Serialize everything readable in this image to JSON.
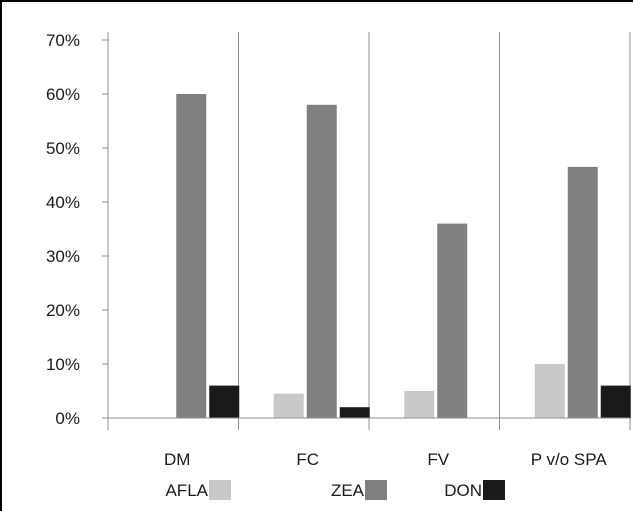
{
  "chart_data": {
    "type": "bar",
    "categories": [
      "DM",
      "FC",
      "FV",
      "P v/o SPA"
    ],
    "series": [
      {
        "name": "AFLA",
        "color": "#c8c8c8",
        "values": [
          0,
          4.5,
          5,
          10
        ]
      },
      {
        "name": "ZEA",
        "color": "#808080",
        "values": [
          60,
          58,
          36,
          46.5
        ]
      },
      {
        "name": "DON",
        "color": "#1a1a1a",
        "values": [
          6,
          2,
          0,
          6
        ]
      }
    ],
    "y_ticks": [
      "0%",
      "10%",
      "20%",
      "30%",
      "40%",
      "50%",
      "60%",
      "70%"
    ],
    "ylim": [
      0,
      70
    ],
    "grid": "vertical category separators only",
    "legend_position": "bottom",
    "title": "",
    "xlabel": "",
    "ylabel": ""
  }
}
